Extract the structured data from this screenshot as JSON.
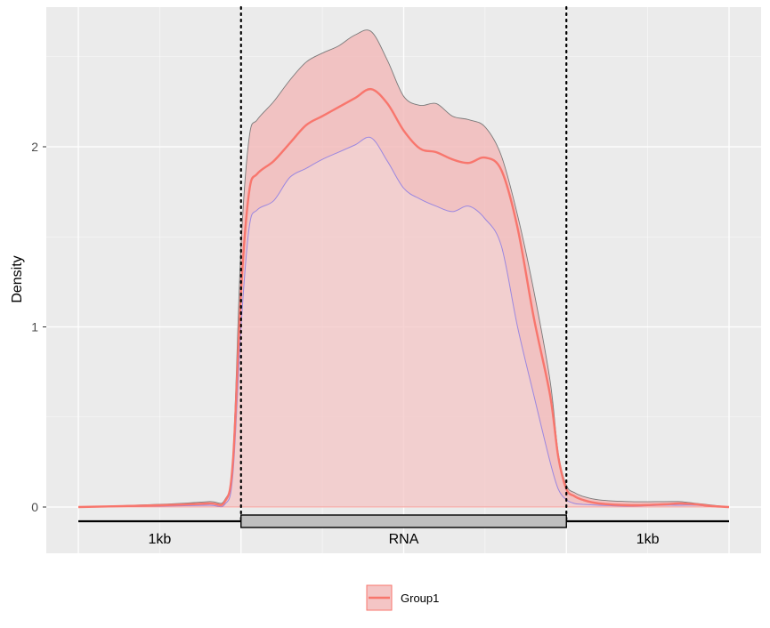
{
  "chart_data": {
    "type": "area",
    "ylabel": "Density",
    "ylim": [
      -0.25,
      2.75
    ],
    "y_ticks": [
      {
        "value": 0,
        "label": "0"
      },
      {
        "value": 1,
        "label": "1"
      },
      {
        "value": 2,
        "label": "2"
      }
    ],
    "regions": [
      {
        "label": "1kb",
        "from": 0,
        "to": 1
      },
      {
        "label": "RNA",
        "from": 1,
        "to": 3
      },
      {
        "label": "1kb",
        "from": 3,
        "to": 4
      }
    ],
    "region_boundaries": [
      1,
      3
    ],
    "grid": true,
    "legend": {
      "position": "bottom",
      "entries": [
        "Group1"
      ]
    },
    "series": [
      {
        "name": "Group1",
        "x": [
          0,
          0.5,
          0.8,
          0.9,
          0.95,
          1.0,
          1.05,
          1.1,
          1.2,
          1.3,
          1.4,
          1.5,
          1.6,
          1.7,
          1.8,
          1.9,
          2.0,
          2.1,
          2.2,
          2.3,
          2.4,
          2.5,
          2.6,
          2.7,
          2.8,
          2.9,
          2.95,
          3.0,
          3.05,
          3.1,
          3.2,
          3.4,
          3.6,
          3.7,
          3.8,
          3.9,
          4.0
        ],
        "mean": [
          0.0,
          0.01,
          0.02,
          0.03,
          0.25,
          1.2,
          1.75,
          1.85,
          1.92,
          2.02,
          2.12,
          2.17,
          2.22,
          2.27,
          2.32,
          2.24,
          2.09,
          1.99,
          1.97,
          1.93,
          1.91,
          1.94,
          1.87,
          1.55,
          1.05,
          0.62,
          0.28,
          0.1,
          0.06,
          0.04,
          0.02,
          0.01,
          0.015,
          0.02,
          0.015,
          0.005,
          0.0
        ],
        "upper": [
          0.0,
          0.015,
          0.03,
          0.04,
          0.28,
          1.45,
          2.05,
          2.15,
          2.25,
          2.37,
          2.47,
          2.52,
          2.56,
          2.62,
          2.64,
          2.48,
          2.28,
          2.23,
          2.24,
          2.17,
          2.15,
          2.11,
          1.95,
          1.62,
          1.2,
          0.7,
          0.3,
          0.12,
          0.08,
          0.06,
          0.04,
          0.03,
          0.03,
          0.03,
          0.02,
          0.01,
          0.0
        ],
        "lower": [
          0.0,
          0.005,
          0.01,
          0.015,
          0.18,
          1.0,
          1.55,
          1.65,
          1.7,
          1.83,
          1.88,
          1.93,
          1.97,
          2.01,
          2.05,
          1.92,
          1.77,
          1.71,
          1.67,
          1.64,
          1.67,
          1.6,
          1.45,
          1.0,
          0.62,
          0.25,
          0.1,
          0.04,
          0.02,
          0.015,
          0.01,
          0.005,
          0.01,
          0.01,
          0.01,
          0.003,
          0.0
        ]
      }
    ]
  },
  "colors": {
    "panel_bg": "#ebebeb",
    "grid_major": "#ffffff",
    "band_fill": "#f4c5c5",
    "band_outline": "#7a7a7a",
    "mean_line": "#f8766d",
    "lower_line": "#9b87e0",
    "rna_box": "#bfbfbf"
  }
}
